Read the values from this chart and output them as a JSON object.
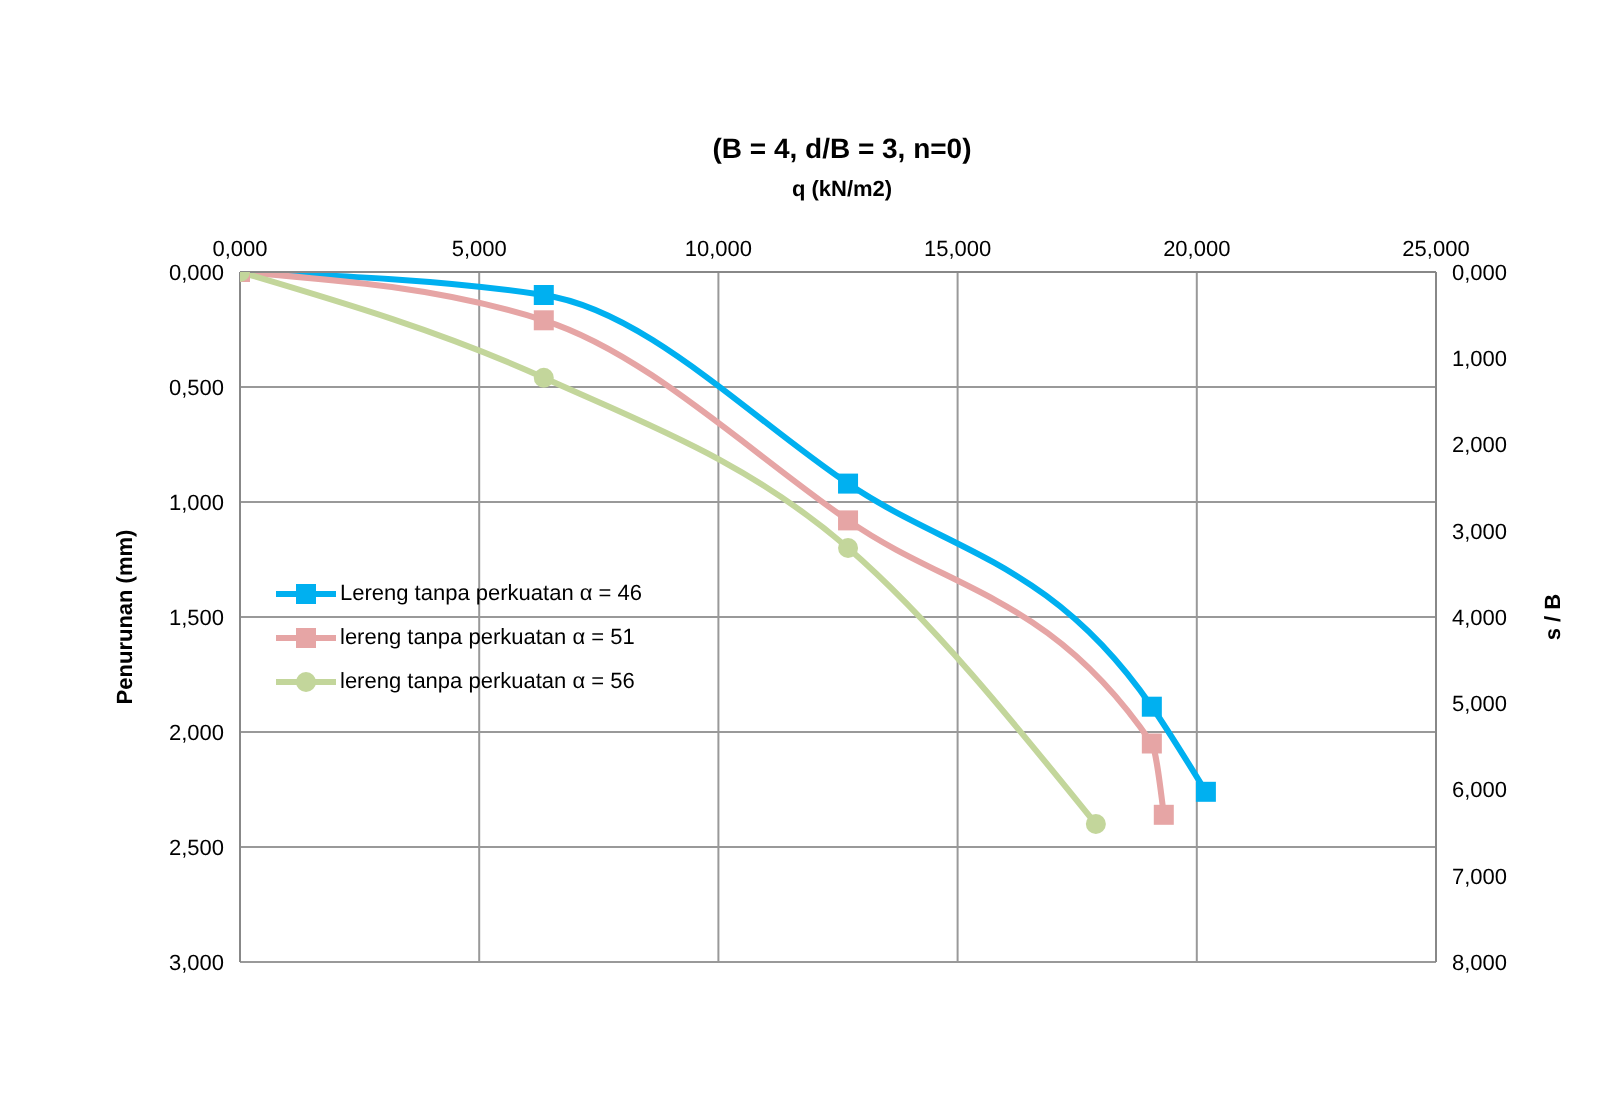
{
  "chart_data": {
    "type": "line",
    "title": "(B = 4, d/B = 3, n=0)",
    "xlabel": "q (kN/m2)",
    "ylabel": "Penurunan (mm)",
    "y2label": "s / B",
    "series": [
      {
        "name": "Lereng tanpa perkuatan α = 46",
        "color": "#00b0f0",
        "marker": "square",
        "x": [
          0,
          6.35,
          12.71,
          19.06,
          20.19
        ],
        "values": [
          0,
          0.1,
          0.92,
          1.89,
          2.26
        ]
      },
      {
        "name": "lereng tanpa perkuatan α = 51",
        "color": "#e6a5a5",
        "marker": "square",
        "x": [
          0,
          6.35,
          12.71,
          19.06,
          19.31
        ],
        "values": [
          0,
          0.21,
          1.08,
          2.05,
          2.36
        ]
      },
      {
        "name": "lereng tanpa perkuatan α = 56",
        "color": "#c3d69b",
        "marker": "circle",
        "x": [
          0,
          6.35,
          12.71,
          17.89
        ],
        "values": [
          0,
          0.46,
          1.2,
          2.4
        ]
      }
    ],
    "xlim": [
      0,
      25
    ],
    "xticks": [
      {
        "value": 0,
        "label": "0,000"
      },
      {
        "value": 5,
        "label": "5,000"
      },
      {
        "value": 10,
        "label": "10,000"
      },
      {
        "value": 15,
        "label": "15,000"
      },
      {
        "value": 20,
        "label": "20,000"
      },
      {
        "value": 25,
        "label": "25,000"
      }
    ],
    "ylim": [
      3,
      0
    ],
    "yticks": [
      {
        "value": 0,
        "label": "0,000"
      },
      {
        "value": 0.5,
        "label": "0,500"
      },
      {
        "value": 1,
        "label": "1,000"
      },
      {
        "value": 1.5,
        "label": "1,500"
      },
      {
        "value": 2,
        "label": "2,000"
      },
      {
        "value": 2.5,
        "label": "2,500"
      },
      {
        "value": 3,
        "label": "3,000"
      }
    ],
    "y2lim": [
      8,
      0
    ],
    "y2ticks": [
      {
        "value": 0,
        "label": "0,000"
      },
      {
        "value": 1,
        "label": "1,000"
      },
      {
        "value": 2,
        "label": "2,000"
      },
      {
        "value": 3,
        "label": "3,000"
      },
      {
        "value": 4,
        "label": "4,000"
      },
      {
        "value": 5,
        "label": "5,000"
      },
      {
        "value": 6,
        "label": "6,000"
      },
      {
        "value": 7,
        "label": "7,000"
      },
      {
        "value": 8,
        "label": "8,000"
      }
    ],
    "grid": true,
    "legend": "left",
    "line_style": "solid"
  }
}
